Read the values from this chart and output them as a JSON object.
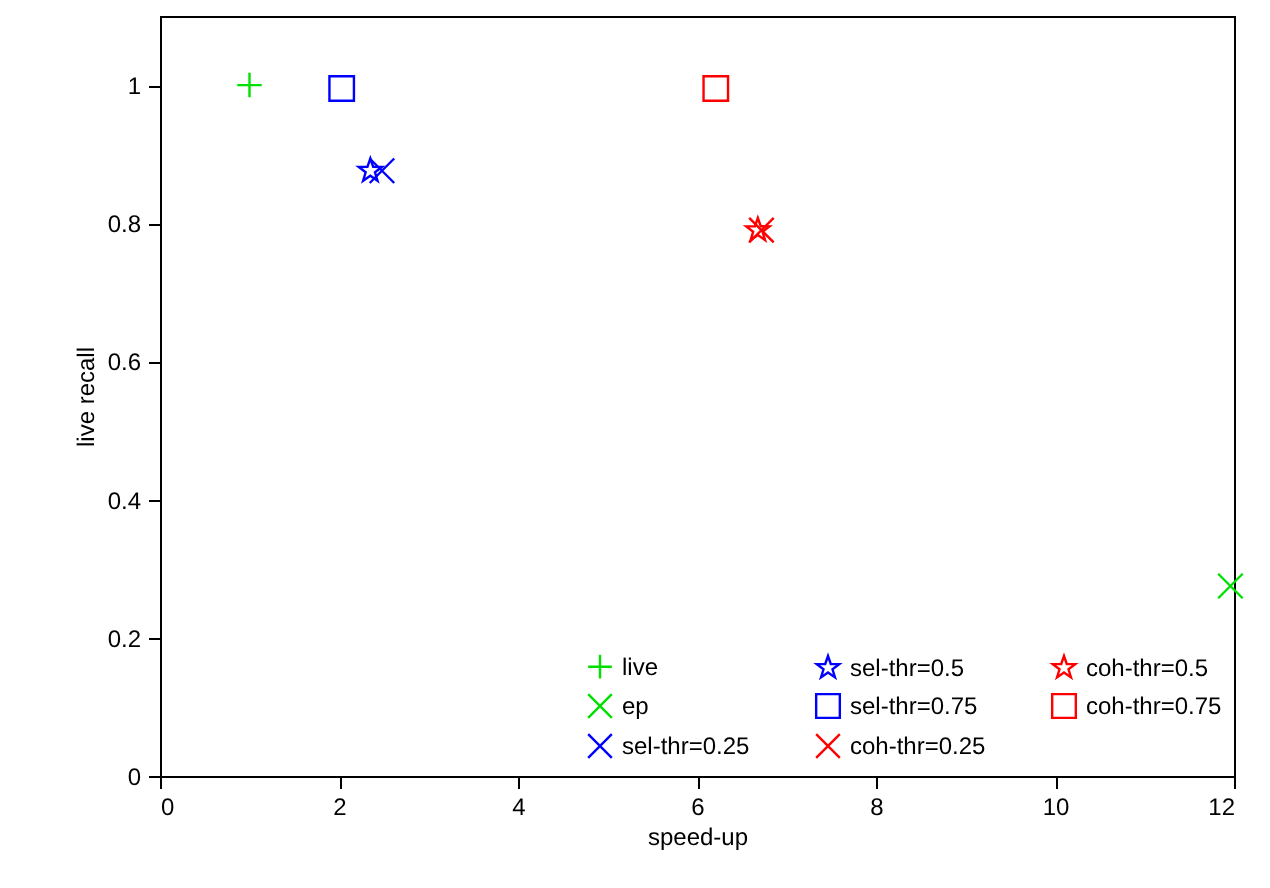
{
  "chart_data": {
    "type": "scatter",
    "xlabel": "speed-up",
    "ylabel": "live recall",
    "xlim": [
      0,
      12
    ],
    "ylim": [
      0,
      1.1
    ],
    "xticks": [
      0,
      2,
      4,
      6,
      8,
      10,
      12
    ],
    "yticks": [
      0,
      0.2,
      0.4,
      0.6,
      0.8,
      1
    ],
    "grid": false,
    "legend": "bottom",
    "series": [
      {
        "name": "live",
        "color": "#00e000",
        "marker": "plus",
        "x": [
          1.0
        ],
        "values": [
          1.0
        ]
      },
      {
        "name": "ep",
        "color": "#00e000",
        "marker": "cross",
        "x": [
          11.96
        ],
        "values": [
          0.275
        ]
      },
      {
        "name": "sel-thr=0.25",
        "color": "#0000ff",
        "marker": "cross",
        "x": [
          2.48
        ],
        "values": [
          0.876
        ]
      },
      {
        "name": "sel-thr=0.5",
        "color": "#0000ff",
        "marker": "star",
        "x": [
          2.35
        ],
        "values": [
          0.876
        ]
      },
      {
        "name": "sel-thr=0.75",
        "color": "#0000ff",
        "marker": "square",
        "x": [
          2.03
        ],
        "values": [
          0.995
        ]
      },
      {
        "name": "coh-thr=0.25",
        "color": "#ff0000",
        "marker": "cross",
        "x": [
          6.72
        ],
        "values": [
          0.79
        ]
      },
      {
        "name": "coh-thr=0.5",
        "color": "#ff0000",
        "marker": "star",
        "x": [
          6.68
        ],
        "values": [
          0.79
        ]
      },
      {
        "name": "coh-thr=0.75",
        "color": "#ff0000",
        "marker": "square",
        "x": [
          6.21
        ],
        "values": [
          0.995
        ]
      }
    ]
  }
}
